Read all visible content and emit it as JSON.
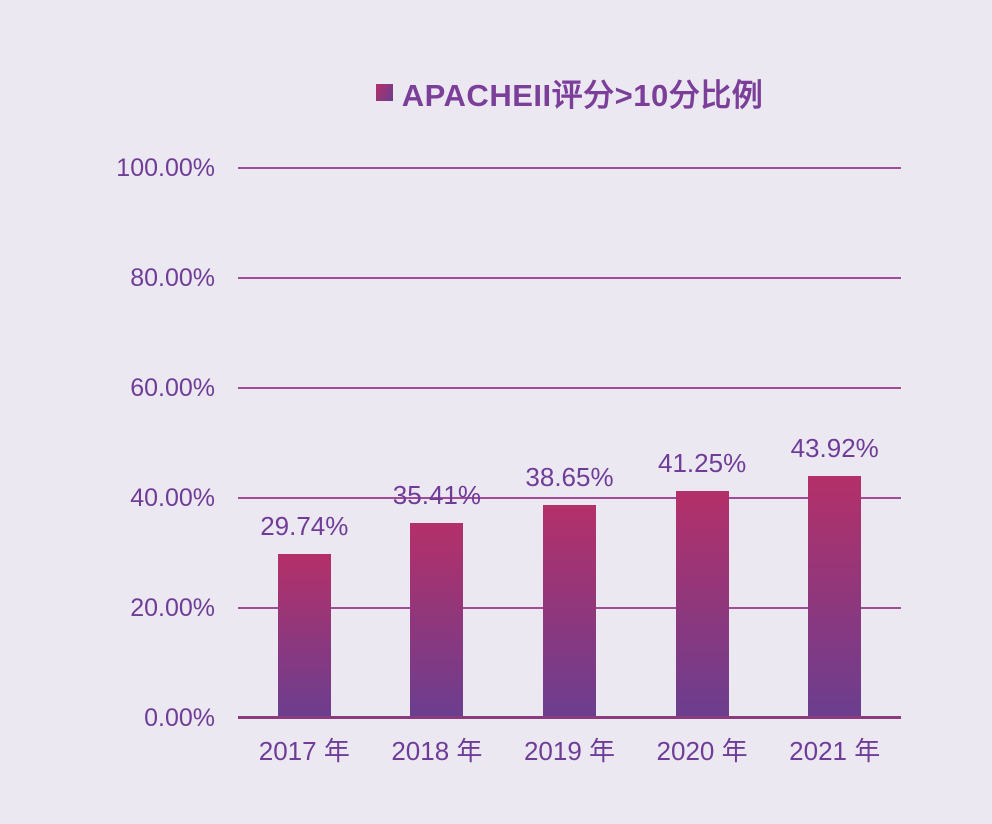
{
  "colors": {
    "background": "#ECE8F1",
    "title_text": "#7B3F9A",
    "tick_label": "#6F3D98",
    "data_label": "#6F3D98",
    "gridline": "#A04C96",
    "axis_line": "#8B3C7F",
    "bar_gradient_top": "#B43069",
    "bar_gradient_bottom": "#6B3E8F"
  },
  "chart_data": {
    "type": "bar",
    "title": "APACHEII评分>10分比例",
    "legend": {
      "label": "APACHEII评分>10分比例",
      "position": "top"
    },
    "categories": [
      "2017 年",
      "2018 年",
      "2019 年",
      "2020 年",
      "2021 年"
    ],
    "values": [
      29.74,
      35.41,
      38.65,
      41.25,
      43.92
    ],
    "data_labels": [
      "29.74%",
      "35.41%",
      "38.65%",
      "41.25%",
      "43.92%"
    ],
    "xlabel": "",
    "ylabel": "",
    "ylim": [
      0,
      100
    ],
    "y_ticks": [
      {
        "value": 0,
        "label": "0.00%"
      },
      {
        "value": 20,
        "label": "20.00%"
      },
      {
        "value": 40,
        "label": "40.00%"
      },
      {
        "value": 60,
        "label": "60.00%"
      },
      {
        "value": 80,
        "label": "80.00%"
      },
      {
        "value": 100,
        "label": "100.00%"
      }
    ],
    "grid": true
  }
}
